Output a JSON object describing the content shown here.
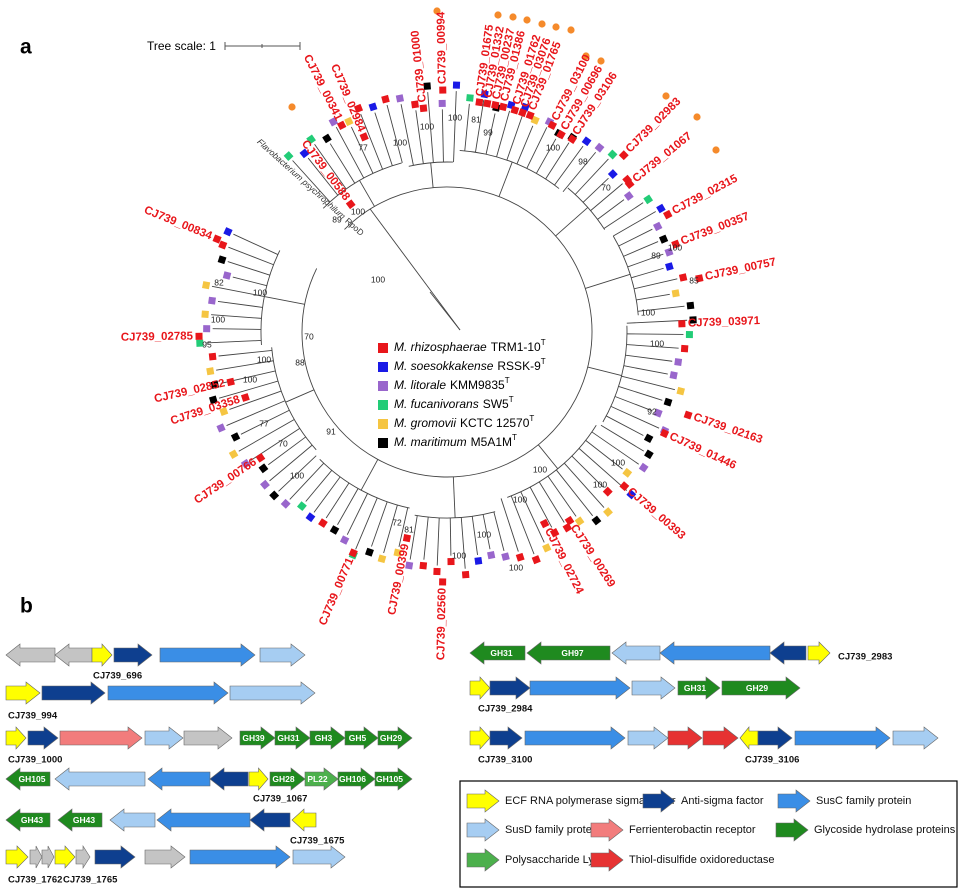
{
  "panel_a": {
    "label": "a",
    "tree_scale": "Tree scale: 1",
    "outgroup": {
      "name": "Flavobacterium psychrophilum",
      "suffix": "RpoD"
    },
    "legend": [
      {
        "species": "M. rhizosphaerae",
        "strain": "TRM1-10",
        "superscript": "T",
        "color": "#e8161b"
      },
      {
        "species": "M. soesokkakense",
        "strain": "RSSK-9",
        "superscript": "T",
        "color": "#1a1ae6"
      },
      {
        "species": "M. litorale",
        "strain": "KMM9835",
        "superscript": "T",
        "color": "#9966cc"
      },
      {
        "species": "M. fucanivorans",
        "strain": "SW5",
        "superscript": "T",
        "color": "#22cc77"
      },
      {
        "species": "M. gromovii",
        "strain": "KCTC 12570",
        "superscript": "T",
        "color": "#f5c542"
      },
      {
        "species": "M. maritimum",
        "strain": "M5A1M",
        "superscript": "T",
        "color": "#000000"
      }
    ],
    "leaves": [
      "CJ739_00994",
      "CJ739_01000",
      "CJ739_00341",
      "CJ739_02984",
      "CJ739_00588",
      "CJ739_01675",
      "CJ739_01332",
      "CJ739_00237",
      "CJ739_01386",
      "CJ739_01762",
      "CJ739_03076",
      "CJ739_01765",
      "CJ739_03100",
      "CJ739_00696",
      "CJ739_03106",
      "CJ739_02983",
      "CJ739_01067",
      "CJ739_02315",
      "CJ739_00357",
      "CJ739_00757",
      "CJ739_03971",
      "CJ739_02163",
      "CJ739_01446",
      "CJ739_00393",
      "CJ739_00269",
      "CJ739_02724",
      "CJ739_02560",
      "CJ739_00399",
      "CJ739_00771",
      "CJ739_00766",
      "CJ739_03358",
      "CJ739_02852",
      "CJ739_02785",
      "CJ739_00834"
    ],
    "bootstrap": [
      77,
      100,
      89,
      100,
      100,
      100,
      100,
      99,
      81,
      100,
      98,
      70,
      100,
      89,
      85,
      100,
      100,
      92,
      100,
      100,
      100,
      100,
      100,
      100,
      100,
      72,
      81,
      91,
      77,
      70,
      100,
      100,
      70,
      88,
      100,
      95,
      100,
      82,
      100
    ]
  },
  "panel_b": {
    "label": "b",
    "clusters": [
      {
        "names": [
          "CJ739_696"
        ],
        "genes": [
          {
            "color": "#c4c4c4"
          },
          {
            "color": "#c4c4c4"
          },
          {
            "color": "#ffff00"
          },
          {
            "color": "#0e3f8f"
          },
          {
            "color": "#3a8ee6"
          },
          {
            "color": "#a6cdf2"
          }
        ]
      },
      {
        "names": [
          "CJ739_994"
        ],
        "genes": [
          {
            "color": "#ffff00"
          },
          {
            "color": "#0e3f8f"
          },
          {
            "color": "#3a8ee6"
          },
          {
            "color": "#a6cdf2"
          }
        ]
      },
      {
        "names": [
          "CJ739_1000"
        ],
        "genes": [
          {
            "color": "#ffff00"
          },
          {
            "color": "#0e3f8f"
          },
          {
            "color": "#f27c7c"
          },
          {
            "color": "#a6cdf2"
          },
          {
            "color": "#c4c4c4"
          },
          {
            "color": "#1f8a1f",
            "label": "GH39"
          },
          {
            "color": "#1f8a1f",
            "label": "GH31"
          },
          {
            "color": "#1f8a1f",
            "label": "GH3"
          },
          {
            "color": "#1f8a1f",
            "label": "GH5"
          },
          {
            "color": "#1f8a1f",
            "label": "GH29"
          }
        ]
      },
      {
        "names": [
          "CJ739_1067"
        ],
        "genes": [
          {
            "color": "#1f8a1f",
            "label": "GH105"
          },
          {
            "color": "#a6cdf2"
          },
          {
            "color": "#3a8ee6"
          },
          {
            "color": "#0e3f8f"
          },
          {
            "color": "#ffff00"
          },
          {
            "color": "#1f8a1f",
            "label": "GH28"
          },
          {
            "color": "#4cb04c",
            "label": "PL22"
          },
          {
            "color": "#1f8a1f",
            "label": "GH106"
          },
          {
            "color": "#1f8a1f",
            "label": "GH105"
          }
        ]
      },
      {
        "names": [
          "CJ739_1675"
        ],
        "genes": [
          {
            "color": "#1f8a1f",
            "label": "GH43"
          },
          {
            "color": "#1f8a1f",
            "label": "GH43"
          },
          {
            "color": "#a6cdf2"
          },
          {
            "color": "#3a8ee6"
          },
          {
            "color": "#0e3f8f"
          },
          {
            "color": "#ffff00"
          }
        ]
      },
      {
        "names": [
          "CJ739_1762",
          "CJ739_1765"
        ],
        "genes": [
          {
            "color": "#ffff00"
          },
          {
            "color": "#c4c4c4"
          },
          {
            "color": "#c4c4c4"
          },
          {
            "color": "#ffff00"
          },
          {
            "color": "#c4c4c4"
          },
          {
            "color": "#0e3f8f"
          },
          {
            "color": "#c4c4c4"
          },
          {
            "color": "#3a8ee6"
          },
          {
            "color": "#a6cdf2"
          }
        ]
      },
      {
        "names": [
          "CJ739_2983"
        ],
        "genes": [
          {
            "color": "#1f8a1f",
            "label": "GH31"
          },
          {
            "color": "#1f8a1f",
            "label": "GH97"
          },
          {
            "color": "#a6cdf2"
          },
          {
            "color": "#3a8ee6"
          },
          {
            "color": "#0e3f8f"
          },
          {
            "color": "#ffff00"
          }
        ]
      },
      {
        "names": [
          "CJ739_2984"
        ],
        "genes": [
          {
            "color": "#ffff00"
          },
          {
            "color": "#0e3f8f"
          },
          {
            "color": "#3a8ee6"
          },
          {
            "color": "#a6cdf2"
          },
          {
            "color": "#1f8a1f",
            "label": "GH31"
          },
          {
            "color": "#1f8a1f",
            "label": "GH29"
          }
        ]
      },
      {
        "names": [
          "CJ739_3100",
          "CJ739_3106"
        ],
        "genes": [
          {
            "color": "#ffff00"
          },
          {
            "color": "#0e3f8f"
          },
          {
            "color": "#3a8ee6"
          },
          {
            "color": "#a6cdf2"
          },
          {
            "color": "#e63232"
          },
          {
            "color": "#e63232"
          },
          {
            "color": "#ffff00"
          },
          {
            "color": "#0e3f8f"
          },
          {
            "color": "#3a8ee6"
          },
          {
            "color": "#a6cdf2"
          }
        ]
      }
    ],
    "legend": [
      {
        "label": "ECF RNA polymerase sigma factor",
        "color": "#ffff00"
      },
      {
        "label": "Anti-sigma factor",
        "color": "#0e3f8f"
      },
      {
        "label": "SusC family protein",
        "color": "#3a8ee6"
      },
      {
        "label": "SusD family protein",
        "color": "#a6cdf2"
      },
      {
        "label": "Ferrienterobactin receptor",
        "color": "#f27c7c"
      },
      {
        "label": "Glycoside hydrolase proteins",
        "color": "#1f8a1f"
      },
      {
        "label": "Polysaccharide Lyases",
        "color": "#4cb04c"
      },
      {
        "label": "Thiol-disulfide oxidoreductase",
        "color": "#e63232"
      }
    ]
  }
}
